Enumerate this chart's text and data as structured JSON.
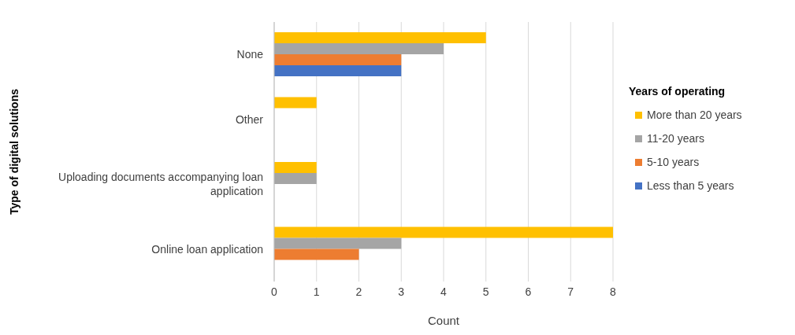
{
  "chart_data": {
    "type": "bar",
    "orientation": "horizontal",
    "xlabel": "Count",
    "ylabel": "Type of digital solutions",
    "legend_title": "Years of operating",
    "categories": [
      "None",
      "Other",
      "Uploading documents accompanying loan application",
      "Online loan application"
    ],
    "series": [
      {
        "name": "More than 20 years",
        "color": "#ffc000",
        "values": [
          5,
          1,
          1,
          8
        ]
      },
      {
        "name": "11-20 years",
        "color": "#a5a5a5",
        "values": [
          4,
          0,
          1,
          3
        ]
      },
      {
        "name": "5-10 years",
        "color": "#ed7d31",
        "values": [
          3,
          0,
          0,
          2
        ]
      },
      {
        "name": "Less than 5 years",
        "color": "#4472c4",
        "values": [
          3,
          0,
          0,
          0
        ]
      }
    ],
    "xlim": [
      0,
      8
    ],
    "xticks": [
      0,
      1,
      2,
      3,
      4,
      5,
      6,
      7,
      8
    ],
    "grid": "x",
    "legend": "right"
  }
}
